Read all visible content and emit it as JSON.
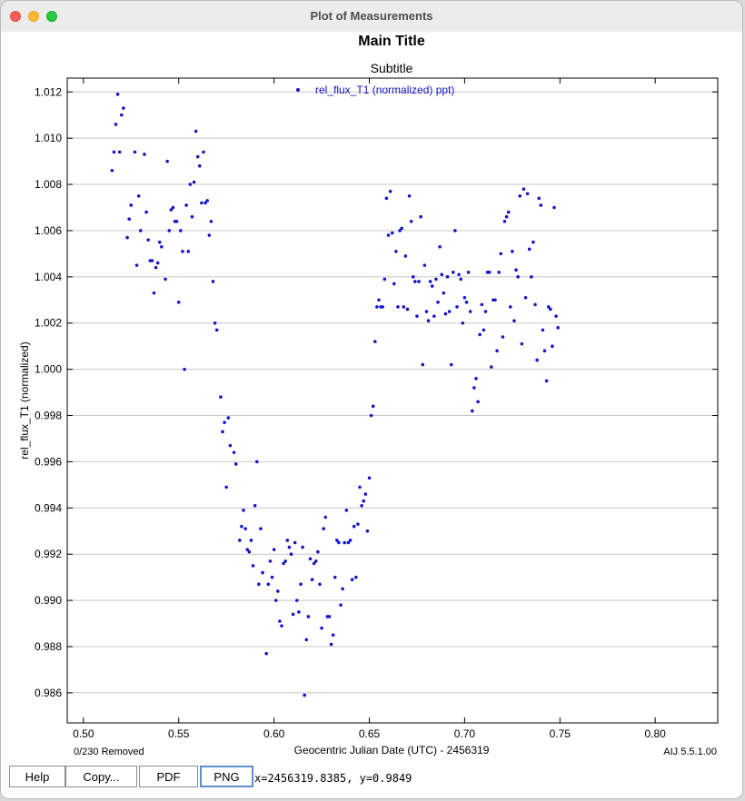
{
  "window": {
    "title": "Plot of Measurements"
  },
  "buttons": {
    "help": "Help",
    "copy": "Copy...",
    "pdf": "PDF",
    "png": "PNG"
  },
  "status": {
    "coord_readout": "x=2456319.8385, y=0.9849"
  },
  "colors": {
    "series": "#1515c8",
    "grid": "#c8c8c8",
    "axis": "#000000"
  },
  "chart_data": {
    "type": "scatter",
    "title": "Main Title",
    "subtitle": "Subtitle",
    "xlabel": "Geocentric Julian Date (UTC) - 2456319",
    "ylabel": "rel_flux_T1 (normalized)",
    "xlim": [
      0.4915,
      0.8328
    ],
    "ylim": [
      0.9847,
      1.0126
    ],
    "xticks": [
      "0.50",
      "0.55",
      "0.60",
      "0.65",
      "0.70",
      "0.75",
      "0.80"
    ],
    "yticks": [
      "0.986",
      "0.988",
      "0.990",
      "0.992",
      "0.994",
      "0.996",
      "0.998",
      "1.000",
      "1.002",
      "1.004",
      "1.006",
      "1.008",
      "1.010",
      "1.012"
    ],
    "grid": true,
    "legend_position": "top-center",
    "footer_left": "0/230 Removed",
    "footer_right": "AIJ 5.5.1.00",
    "series": [
      {
        "name": "rel_flux_T1 (normalized) ppt)",
        "points": [
          [
            0.515,
            1.0086
          ],
          [
            0.516,
            1.0094
          ],
          [
            0.517,
            1.0106
          ],
          [
            0.518,
            1.0119
          ],
          [
            0.519,
            1.0094
          ],
          [
            0.52,
            1.011
          ],
          [
            0.521,
            1.0113
          ],
          [
            0.523,
            1.0057
          ],
          [
            0.524,
            1.0065
          ],
          [
            0.525,
            1.0071
          ],
          [
            0.527,
            1.0094
          ],
          [
            0.528,
            1.0045
          ],
          [
            0.529,
            1.0075
          ],
          [
            0.53,
            1.006
          ],
          [
            0.532,
            1.0093
          ],
          [
            0.533,
            1.0068
          ],
          [
            0.534,
            1.0056
          ],
          [
            0.535,
            1.0047
          ],
          [
            0.536,
            1.0047
          ],
          [
            0.537,
            1.0033
          ],
          [
            0.538,
            1.0044
          ],
          [
            0.539,
            1.0046
          ],
          [
            0.54,
            1.0055
          ],
          [
            0.541,
            1.0053
          ],
          [
            0.543,
            1.0039
          ],
          [
            0.544,
            1.009
          ],
          [
            0.545,
            1.006
          ],
          [
            0.546,
            1.0069
          ],
          [
            0.547,
            1.007
          ],
          [
            0.548,
            1.0064
          ],
          [
            0.549,
            1.0064
          ],
          [
            0.55,
            1.0029
          ],
          [
            0.551,
            1.006
          ],
          [
            0.552,
            1.0051
          ],
          [
            0.553,
            1.0
          ],
          [
            0.554,
            1.0071
          ],
          [
            0.555,
            1.0051
          ],
          [
            0.556,
            1.008
          ],
          [
            0.557,
            1.0066
          ],
          [
            0.558,
            1.0081
          ],
          [
            0.559,
            1.0103
          ],
          [
            0.56,
            1.0092
          ],
          [
            0.561,
            1.0088
          ],
          [
            0.562,
            1.0072
          ],
          [
            0.563,
            1.0094
          ],
          [
            0.564,
            1.0072
          ],
          [
            0.565,
            1.0073
          ],
          [
            0.566,
            1.0058
          ],
          [
            0.567,
            1.0064
          ],
          [
            0.568,
            1.0038
          ],
          [
            0.569,
            1.002
          ],
          [
            0.57,
            1.0017
          ],
          [
            0.572,
            0.9988
          ],
          [
            0.573,
            0.9973
          ],
          [
            0.574,
            0.9977
          ],
          [
            0.575,
            0.9949
          ],
          [
            0.576,
            0.9979
          ],
          [
            0.577,
            0.9967
          ],
          [
            0.579,
            0.9964
          ],
          [
            0.58,
            0.9959
          ],
          [
            0.582,
            0.9926
          ],
          [
            0.583,
            0.9932
          ],
          [
            0.584,
            0.9939
          ],
          [
            0.585,
            0.9931
          ],
          [
            0.586,
            0.9922
          ],
          [
            0.587,
            0.9921
          ],
          [
            0.588,
            0.9926
          ],
          [
            0.589,
            0.9915
          ],
          [
            0.59,
            0.9941
          ],
          [
            0.591,
            0.996
          ],
          [
            0.592,
            0.9907
          ],
          [
            0.593,
            0.9931
          ],
          [
            0.594,
            0.9912
          ],
          [
            0.596,
            0.9877
          ],
          [
            0.597,
            0.9907
          ],
          [
            0.598,
            0.9917
          ],
          [
            0.599,
            0.991
          ],
          [
            0.6,
            0.9922
          ],
          [
            0.601,
            0.99
          ],
          [
            0.602,
            0.9904
          ],
          [
            0.603,
            0.9891
          ],
          [
            0.604,
            0.9889
          ],
          [
            0.605,
            0.9916
          ],
          [
            0.606,
            0.9917
          ],
          [
            0.607,
            0.9926
          ],
          [
            0.608,
            0.9923
          ],
          [
            0.609,
            0.992
          ],
          [
            0.61,
            0.9894
          ],
          [
            0.611,
            0.9925
          ],
          [
            0.612,
            0.99
          ],
          [
            0.613,
            0.9895
          ],
          [
            0.614,
            0.9907
          ],
          [
            0.615,
            0.9923
          ],
          [
            0.616,
            0.9859
          ],
          [
            0.617,
            0.9883
          ],
          [
            0.618,
            0.9893
          ],
          [
            0.619,
            0.9918
          ],
          [
            0.62,
            0.9909
          ],
          [
            0.621,
            0.9916
          ],
          [
            0.622,
            0.9917
          ],
          [
            0.623,
            0.9921
          ],
          [
            0.624,
            0.9907
          ],
          [
            0.625,
            0.9888
          ],
          [
            0.626,
            0.9931
          ],
          [
            0.627,
            0.9936
          ],
          [
            0.628,
            0.9893
          ],
          [
            0.629,
            0.9893
          ],
          [
            0.63,
            0.9881
          ],
          [
            0.631,
            0.9885
          ],
          [
            0.632,
            0.991
          ],
          [
            0.633,
            0.9926
          ],
          [
            0.634,
            0.9925
          ],
          [
            0.635,
            0.9898
          ],
          [
            0.636,
            0.9905
          ],
          [
            0.637,
            0.9925
          ],
          [
            0.638,
            0.9939
          ],
          [
            0.639,
            0.9925
          ],
          [
            0.64,
            0.9926
          ],
          [
            0.641,
            0.9909
          ],
          [
            0.642,
            0.9932
          ],
          [
            0.643,
            0.991
          ],
          [
            0.644,
            0.9933
          ],
          [
            0.645,
            0.9949
          ],
          [
            0.646,
            0.9941
          ],
          [
            0.647,
            0.9943
          ],
          [
            0.648,
            0.9946
          ],
          [
            0.649,
            0.993
          ],
          [
            0.65,
            0.9953
          ],
          [
            0.651,
            0.998
          ],
          [
            0.652,
            0.9984
          ],
          [
            0.653,
            1.0012
          ],
          [
            0.654,
            1.0027
          ],
          [
            0.655,
            1.003
          ],
          [
            0.656,
            1.0027
          ],
          [
            0.657,
            1.0027
          ],
          [
            0.658,
            1.0039
          ],
          [
            0.659,
            1.0074
          ],
          [
            0.66,
            1.0058
          ],
          [
            0.661,
            1.0077
          ],
          [
            0.662,
            1.0059
          ],
          [
            0.663,
            1.0037
          ],
          [
            0.664,
            1.0051
          ],
          [
            0.665,
            1.0027
          ],
          [
            0.666,
            1.006
          ],
          [
            0.667,
            1.0061
          ],
          [
            0.668,
            1.0027
          ],
          [
            0.669,
            1.0049
          ],
          [
            0.67,
            1.0026
          ],
          [
            0.671,
            1.0075
          ],
          [
            0.672,
            1.0064
          ],
          [
            0.673,
            1.004
          ],
          [
            0.674,
            1.0038
          ],
          [
            0.675,
            1.0023
          ],
          [
            0.676,
            1.0038
          ],
          [
            0.677,
            1.0066
          ],
          [
            0.678,
            1.0002
          ],
          [
            0.679,
            1.0045
          ],
          [
            0.68,
            1.0025
          ],
          [
            0.681,
            1.0021
          ],
          [
            0.682,
            1.0038
          ],
          [
            0.683,
            1.0036
          ],
          [
            0.684,
            1.0023
          ],
          [
            0.685,
            1.0039
          ],
          [
            0.686,
            1.0029
          ],
          [
            0.687,
            1.0053
          ],
          [
            0.688,
            1.0041
          ],
          [
            0.689,
            1.0033
          ],
          [
            0.69,
            1.0024
          ],
          [
            0.691,
            1.004
          ],
          [
            0.692,
            1.0025
          ],
          [
            0.693,
            1.0002
          ],
          [
            0.694,
            1.0042
          ],
          [
            0.695,
            1.006
          ],
          [
            0.696,
            1.0027
          ],
          [
            0.697,
            1.0041
          ],
          [
            0.698,
            1.0039
          ],
          [
            0.699,
            1.002
          ],
          [
            0.7,
            1.0031
          ],
          [
            0.701,
            1.0029
          ],
          [
            0.702,
            1.0042
          ],
          [
            0.703,
            1.0025
          ],
          [
            0.704,
            0.9982
          ],
          [
            0.705,
            0.9992
          ],
          [
            0.706,
            0.9996
          ],
          [
            0.707,
            0.9986
          ],
          [
            0.708,
            1.0015
          ],
          [
            0.709,
            1.0028
          ],
          [
            0.71,
            1.0017
          ],
          [
            0.711,
            1.0025
          ],
          [
            0.712,
            1.0042
          ],
          [
            0.713,
            1.0042
          ],
          [
            0.714,
            1.0001
          ],
          [
            0.715,
            1.003
          ],
          [
            0.716,
            1.003
          ],
          [
            0.717,
            1.0008
          ],
          [
            0.718,
            1.0042
          ],
          [
            0.719,
            1.005
          ],
          [
            0.72,
            1.0014
          ],
          [
            0.721,
            1.0064
          ],
          [
            0.722,
            1.0066
          ],
          [
            0.723,
            1.0068
          ],
          [
            0.724,
            1.0027
          ],
          [
            0.725,
            1.0051
          ],
          [
            0.726,
            1.0021
          ],
          [
            0.727,
            1.0043
          ],
          [
            0.728,
            1.004
          ],
          [
            0.729,
            1.0075
          ],
          [
            0.73,
            1.0011
          ],
          [
            0.731,
            1.0078
          ],
          [
            0.732,
            1.0031
          ],
          [
            0.733,
            1.0076
          ],
          [
            0.734,
            1.0052
          ],
          [
            0.735,
            1.004
          ],
          [
            0.736,
            1.0055
          ],
          [
            0.737,
            1.0028
          ],
          [
            0.738,
            1.0004
          ],
          [
            0.739,
            1.0074
          ],
          [
            0.74,
            1.0071
          ],
          [
            0.741,
            1.0017
          ],
          [
            0.742,
            1.0008
          ],
          [
            0.743,
            0.9995
          ],
          [
            0.744,
            1.0027
          ],
          [
            0.745,
            1.0026
          ],
          [
            0.746,
            1.001
          ],
          [
            0.747,
            1.007
          ],
          [
            0.748,
            1.0023
          ],
          [
            0.749,
            1.0018
          ]
        ]
      }
    ]
  }
}
